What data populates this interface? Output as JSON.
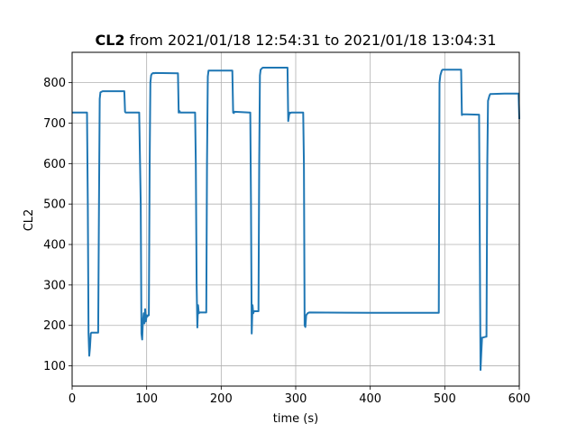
{
  "chart_data": {
    "type": "line",
    "title_bold": "CL2",
    "title_rest": " from 2021/01/18 12:54:31 to 2021/01/18 13:04:31",
    "xlabel": "time (s)",
    "ylabel": "CL2",
    "xlim": [
      0,
      600
    ],
    "ylim": [
      50,
      875
    ],
    "xticks": [
      0,
      100,
      200,
      300,
      400,
      500,
      600
    ],
    "yticks": [
      100,
      200,
      300,
      400,
      500,
      600,
      700,
      800
    ],
    "grid": true,
    "line_color": "#1f77b4",
    "series": [
      {
        "x": [
          0,
          20,
          21,
          22,
          23,
          24,
          25,
          26,
          35,
          36,
          37,
          38,
          40,
          41,
          70,
          71,
          72,
          90,
          92,
          93,
          94,
          95,
          96,
          97,
          98,
          99,
          100,
          101,
          102,
          103,
          104,
          105,
          106,
          107,
          108,
          109,
          110,
          111,
          142,
          143,
          144,
          145,
          165,
          166,
          167,
          168,
          169,
          170,
          171,
          180,
          181,
          182,
          183,
          215,
          216,
          217,
          218,
          238,
          239,
          240,
          241,
          242,
          243,
          244,
          250,
          251,
          252,
          253,
          255,
          256,
          289,
          290,
          291,
          292,
          293,
          294,
          295,
          310,
          311,
          312,
          313,
          314,
          316,
          318,
          400,
          492,
          493,
          494,
          496,
          497,
          522,
          523,
          524,
          545,
          546,
          547,
          548,
          549,
          550,
          551,
          555,
          556,
          557,
          558,
          560,
          561,
          580,
          597,
          598,
          599,
          600
        ],
        "values": [
          726,
          726,
          500,
          180,
          125,
          145,
          180,
          182,
          182,
          500,
          760,
          776,
          778,
          779,
          779,
          728,
          726,
          726,
          500,
          180,
          165,
          210,
          230,
          205,
          240,
          210,
          225,
          222,
          225,
          225,
          600,
          800,
          818,
          822,
          823,
          824,
          823,
          824,
          823,
          726,
          730,
          726,
          726,
          600,
          300,
          195,
          250,
          230,
          232,
          232,
          600,
          815,
          830,
          830,
          726,
          725,
          728,
          726,
          726,
          500,
          180,
          250,
          230,
          235,
          235,
          600,
          818,
          832,
          836,
          837,
          837,
          705,
          720,
          726,
          725,
          726,
          726,
          726,
          600,
          200,
          196,
          225,
          230,
          232,
          231,
          231,
          800,
          818,
          830,
          832,
          832,
          720,
          722,
          721,
          721,
          400,
          90,
          130,
          170,
          170,
          172,
          172,
          600,
          755,
          768,
          772,
          773,
          773,
          773,
          773,
          710
        ]
      }
    ]
  }
}
